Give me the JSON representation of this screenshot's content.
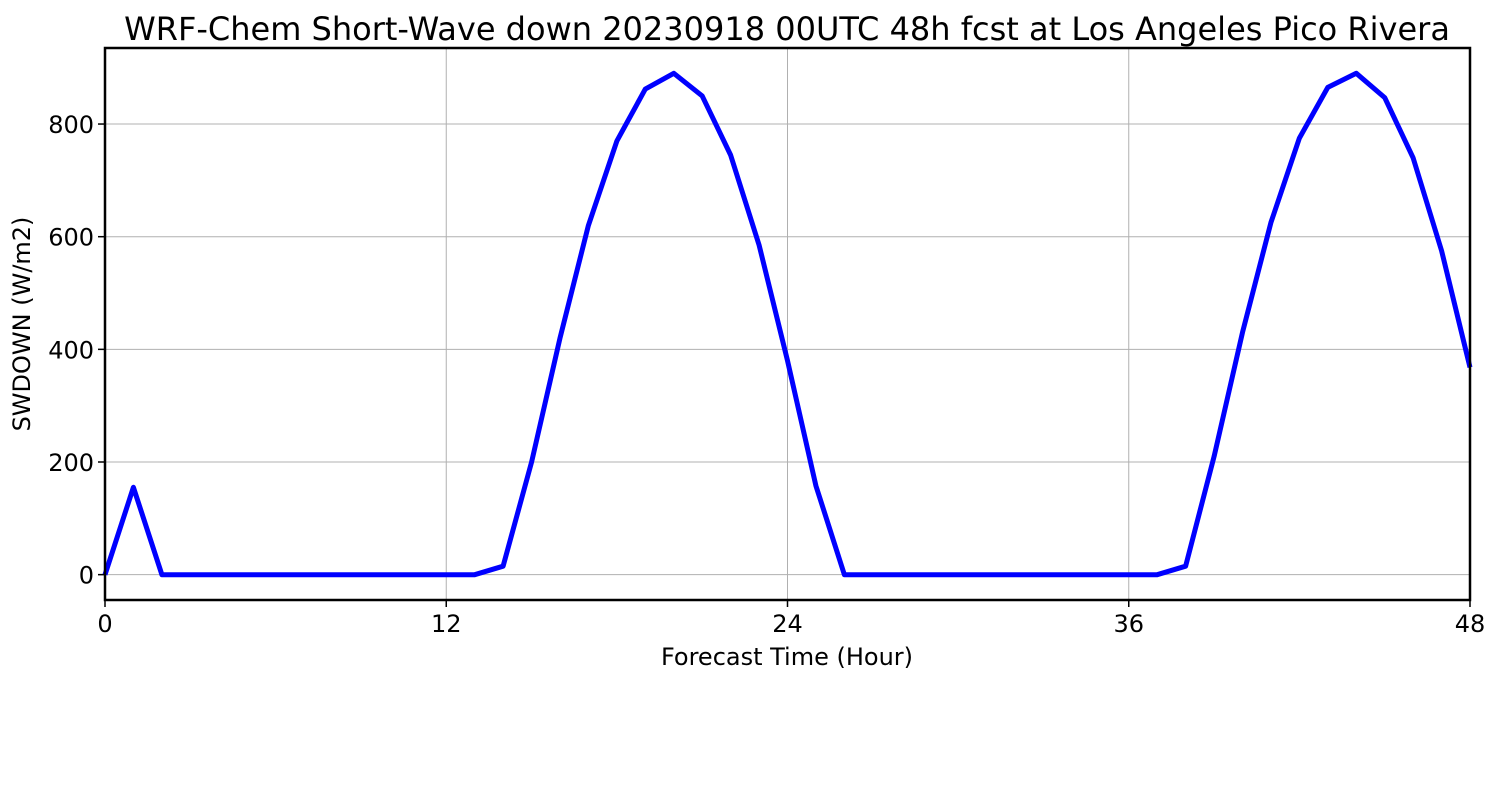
{
  "chart_data": {
    "type": "line",
    "title": "WRF-Chem Short-Wave down  20230918 00UTC 48h fcst at Los Angeles Pico Rivera",
    "xlabel": "Forecast Time (Hour)",
    "ylabel": "SWDOWN  (W/m2)",
    "xlim": [
      0,
      48
    ],
    "ylim": [
      -45,
      935
    ],
    "xticks": [
      0,
      12,
      24,
      36,
      48
    ],
    "yticks": [
      0,
      200,
      400,
      600,
      800
    ],
    "grid": true,
    "series": [
      {
        "color": "#0000ff",
        "x": [
          0,
          1,
          2,
          3,
          4,
          5,
          6,
          7,
          8,
          9,
          10,
          11,
          12,
          13,
          14,
          15,
          16,
          17,
          18,
          19,
          20,
          21,
          22,
          23,
          24,
          25,
          26,
          27,
          28,
          29,
          30,
          31,
          32,
          33,
          34,
          35,
          36,
          37,
          38,
          39,
          40,
          41,
          42,
          43,
          44,
          45,
          46,
          47,
          48
        ],
        "y": [
          0,
          155,
          0,
          0,
          0,
          0,
          0,
          0,
          0,
          0,
          0,
          0,
          0,
          0,
          15,
          200,
          420,
          620,
          770,
          862,
          890,
          850,
          745,
          585,
          380,
          158,
          0,
          0,
          0,
          0,
          0,
          0,
          0,
          0,
          0,
          0,
          0,
          0,
          15,
          210,
          430,
          625,
          775,
          865,
          890,
          847,
          740,
          575,
          368
        ]
      }
    ]
  }
}
